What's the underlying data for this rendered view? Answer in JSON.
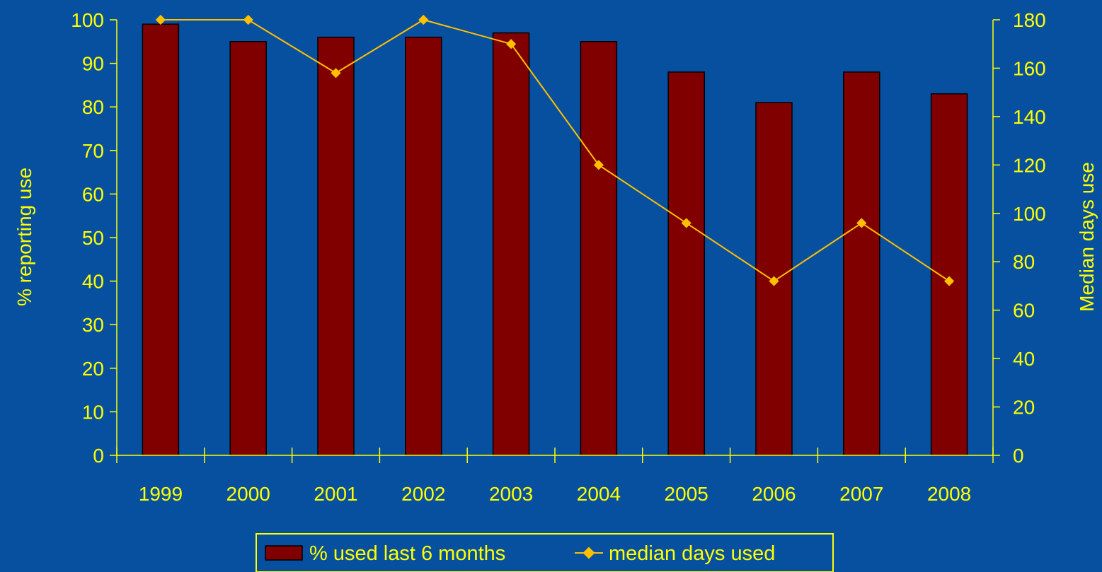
{
  "chart_data": {
    "type": "bar",
    "categories": [
      "1999",
      "2000",
      "2001",
      "2002",
      "2003",
      "2004",
      "2005",
      "2006",
      "2007",
      "2008"
    ],
    "series": [
      {
        "name": "% used last 6 months",
        "type": "bar",
        "axis": "left",
        "values": [
          99,
          95,
          96,
          96,
          97,
          95,
          88,
          81,
          88,
          83
        ]
      },
      {
        "name": "median days used",
        "type": "line",
        "axis": "right",
        "values": [
          180,
          180,
          158,
          180,
          170,
          120,
          96,
          72,
          96,
          72
        ]
      }
    ],
    "ylabel": "% reporting use",
    "y2label": "Median days use",
    "ylim": [
      0,
      100
    ],
    "y2lim": [
      0,
      180
    ],
    "yticks": [
      "0",
      "10",
      "20",
      "30",
      "40",
      "50",
      "60",
      "70",
      "80",
      "90",
      "100"
    ],
    "y2ticks": [
      "0",
      "20",
      "40",
      "60",
      "80",
      "100",
      "120",
      "140",
      "160",
      "180"
    ],
    "legend_position": "bottom-center",
    "grid": false,
    "colors": {
      "background": "#0750A0",
      "bar": "#800000",
      "line": "#FFC000",
      "text": "#FFFF00"
    }
  }
}
